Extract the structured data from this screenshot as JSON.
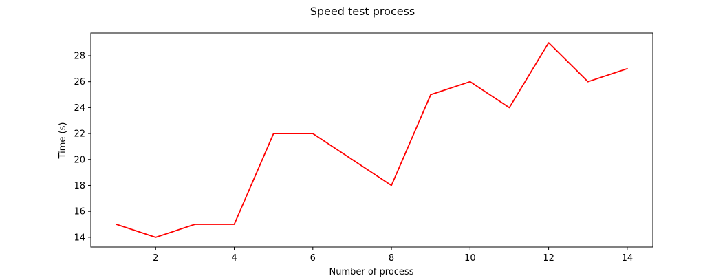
{
  "chart_data": {
    "type": "line",
    "title": "Speed test process",
    "xlabel": "Number of process",
    "ylabel": "Time (s)",
    "x": [
      1,
      2,
      3,
      4,
      5,
      6,
      7,
      8,
      9,
      10,
      11,
      12,
      13,
      14
    ],
    "series": [
      {
        "values": [
          15,
          14,
          15,
          15,
          22,
          22,
          20,
          18,
          25,
          26,
          24,
          29,
          26,
          27
        ],
        "color": "#ff0000"
      }
    ],
    "xlim": [
      0.35,
      14.65
    ],
    "ylim": [
      13.25,
      29.75
    ],
    "xticks": [
      2,
      4,
      6,
      8,
      10,
      12,
      14
    ],
    "yticks": [
      14,
      16,
      18,
      20,
      22,
      24,
      26,
      28
    ],
    "grid": false,
    "legend": "none"
  }
}
